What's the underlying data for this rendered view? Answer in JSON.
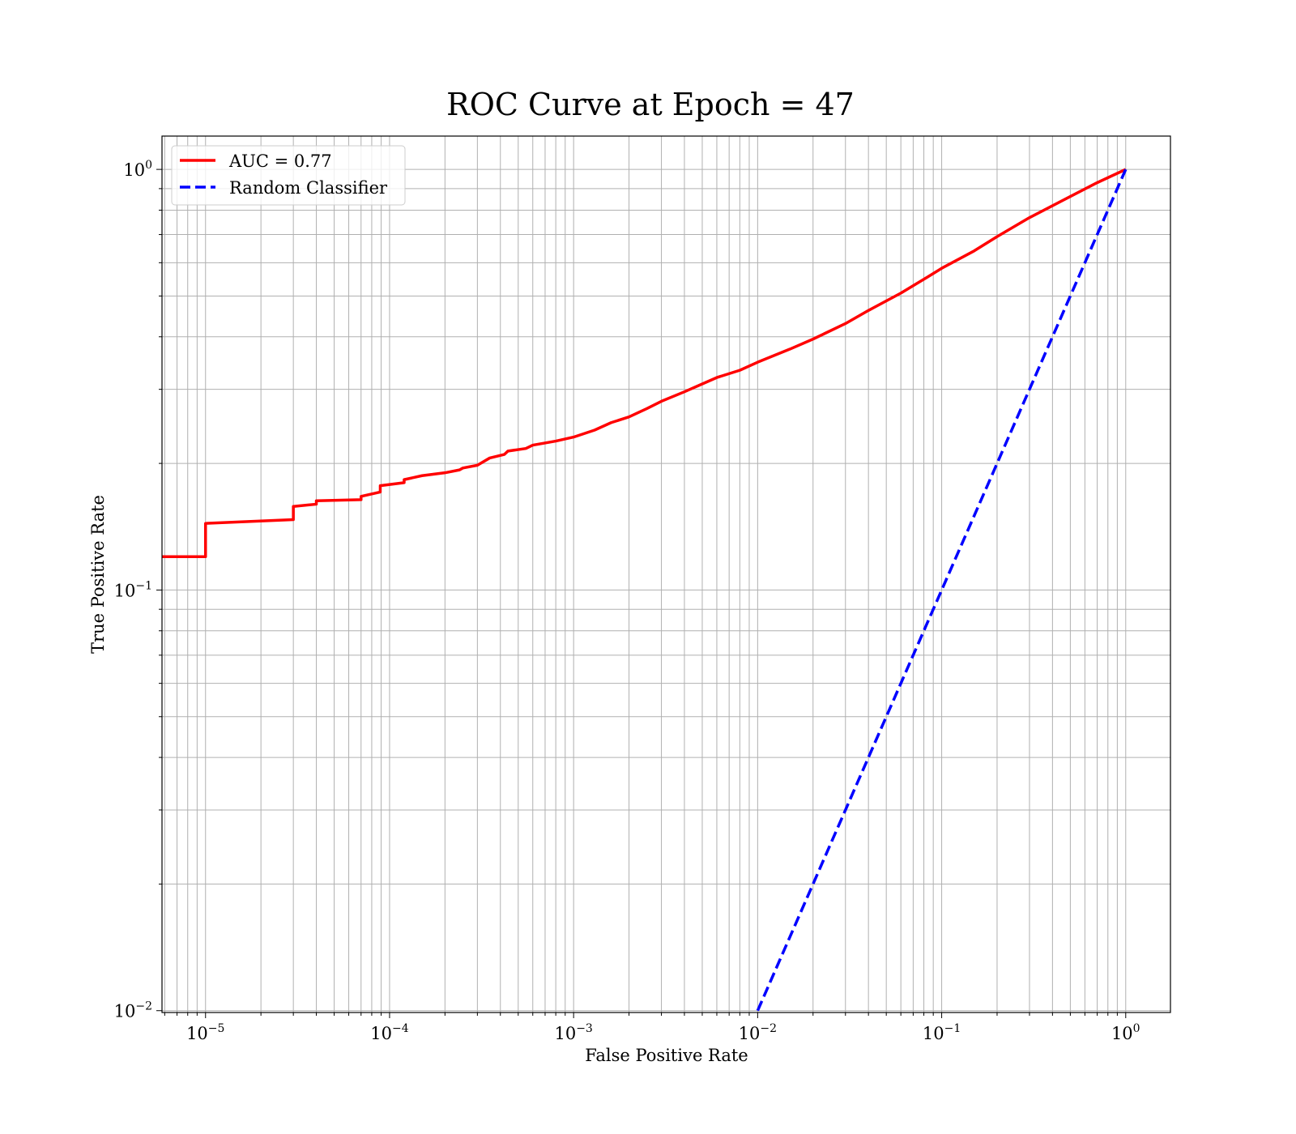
{
  "chart_data": {
    "type": "line",
    "title": "ROC Curve at Epoch = 47",
    "xlabel": "False Positive Rate",
    "ylabel": "True Positive Rate",
    "xscale": "log",
    "yscale": "log",
    "xlim": [
      5.8e-06,
      1.75
    ],
    "ylim": [
      0.0099,
      1.2
    ],
    "grid": "major and minor",
    "legend_position": "top-left",
    "xticks": [
      {
        "value": 1e-05,
        "base": "10",
        "exp": "−5"
      },
      {
        "value": 0.0001,
        "base": "10",
        "exp": "−4"
      },
      {
        "value": 0.001,
        "base": "10",
        "exp": "−3"
      },
      {
        "value": 0.01,
        "base": "10",
        "exp": "−2"
      },
      {
        "value": 0.1,
        "base": "10",
        "exp": "−1"
      },
      {
        "value": 1,
        "base": "10",
        "exp": "0"
      }
    ],
    "yticks": [
      {
        "value": 0.01,
        "base": "10",
        "exp": "−2"
      },
      {
        "value": 0.1,
        "base": "10",
        "exp": "−1"
      },
      {
        "value": 1,
        "base": "10",
        "exp": "0"
      }
    ],
    "series": [
      {
        "name": "AUC = 0.77",
        "color": "#ff0000",
        "style": "solid",
        "x": [
          5.8e-06,
          1e-05,
          1e-05,
          3e-05,
          3e-05,
          4e-05,
          4e-05,
          7e-05,
          7e-05,
          8.9e-05,
          8.9e-05,
          0.00012,
          0.00012,
          0.00015,
          0.0002,
          0.00024,
          0.00025,
          0.0003,
          0.00035,
          0.00042,
          0.00044,
          0.00055,
          0.0006,
          0.0008,
          0.001,
          0.0013,
          0.0016,
          0.002,
          0.0025,
          0.003,
          0.004,
          0.005,
          0.006,
          0.008,
          0.01,
          0.015,
          0.02,
          0.03,
          0.04,
          0.06,
          0.08,
          0.1,
          0.15,
          0.2,
          0.3,
          0.5,
          0.7,
          1.0
        ],
        "y": [
          0.12,
          0.12,
          0.144,
          0.147,
          0.158,
          0.16,
          0.163,
          0.164,
          0.167,
          0.171,
          0.177,
          0.18,
          0.183,
          0.187,
          0.19,
          0.193,
          0.195,
          0.198,
          0.206,
          0.21,
          0.214,
          0.217,
          0.221,
          0.226,
          0.231,
          0.24,
          0.25,
          0.258,
          0.27,
          0.281,
          0.296,
          0.309,
          0.32,
          0.333,
          0.348,
          0.374,
          0.395,
          0.43,
          0.462,
          0.508,
          0.548,
          0.582,
          0.64,
          0.692,
          0.768,
          0.862,
          0.93,
          1.0
        ]
      },
      {
        "name": "Random Classifier",
        "color": "#0000ff",
        "style": "dashed",
        "x": [
          0.01,
          1.0
        ],
        "y": [
          0.01,
          1.0
        ]
      }
    ]
  }
}
